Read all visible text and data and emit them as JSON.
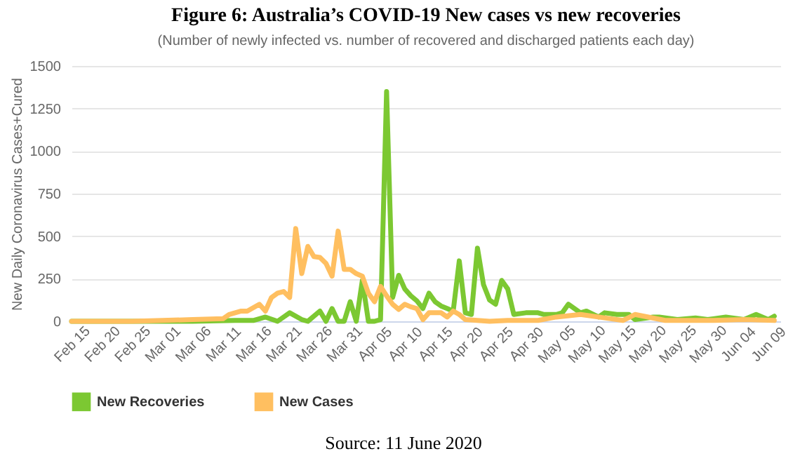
{
  "chart_data": {
    "type": "line",
    "title": "Figure 6: Australia’s COVID-19 New cases vs new recoveries",
    "subtitle": "(Number of newly infected vs. number of recovered and discharged patients each day)",
    "ylabel": "New Daily Coronavirus Cases+Cured",
    "annotations": [
      "Source: 11 June 2020"
    ],
    "series": [
      {
        "name": "New Recoveries",
        "color": "#7cc832",
        "x": [
          "2020-02-15",
          "2020-03-06",
          "2020-03-13",
          "2020-03-16",
          "2020-03-18",
          "2020-03-20",
          "2020-03-22",
          "2020-03-24",
          "2020-03-25",
          "2020-03-27",
          "2020-03-28",
          "2020-03-29",
          "2020-03-30",
          "2020-03-31",
          "2020-04-01",
          "2020-04-02",
          "2020-04-03",
          "2020-04-04",
          "2020-04-05",
          "2020-04-06",
          "2020-04-07",
          "2020-04-08",
          "2020-04-09",
          "2020-04-10",
          "2020-04-11",
          "2020-04-12",
          "2020-04-13",
          "2020-04-14",
          "2020-04-15",
          "2020-04-16",
          "2020-04-17",
          "2020-04-18",
          "2020-04-19",
          "2020-04-20",
          "2020-04-21",
          "2020-04-22",
          "2020-04-23",
          "2020-04-24",
          "2020-04-25",
          "2020-04-26",
          "2020-04-27",
          "2020-04-28",
          "2020-04-30",
          "2020-05-02",
          "2020-05-03",
          "2020-05-05",
          "2020-05-06",
          "2020-05-07",
          "2020-05-09",
          "2020-05-10",
          "2020-05-12",
          "2020-05-13",
          "2020-05-15",
          "2020-05-17",
          "2020-05-18",
          "2020-05-21",
          "2020-05-22",
          "2020-05-25",
          "2020-05-28",
          "2020-05-30",
          "2020-06-02",
          "2020-06-05",
          "2020-06-07",
          "2020-06-09",
          "2020-06-10"
        ],
        "values": [
          0,
          0,
          5,
          5,
          25,
          0,
          50,
          10,
          0,
          60,
          0,
          75,
          0,
          0,
          115,
          0,
          240,
          0,
          0,
          10,
          1350,
          140,
          270,
          190,
          150,
          120,
          75,
          165,
          115,
          90,
          75,
          60,
          355,
          50,
          40,
          430,
          215,
          125,
          100,
          240,
          190,
          40,
          50,
          50,
          40,
          40,
          50,
          100,
          50,
          60,
          25,
          50,
          40,
          40,
          10,
          25,
          25,
          10,
          20,
          10,
          25,
          10,
          40,
          10,
          30
        ]
      },
      {
        "name": "New Cases",
        "color": "#ffbf60",
        "x": [
          "2020-02-15",
          "2020-02-20",
          "2020-02-25",
          "2020-03-01",
          "2020-03-06",
          "2020-03-11",
          "2020-03-12",
          "2020-03-14",
          "2020-03-15",
          "2020-03-17",
          "2020-03-18",
          "2020-03-19",
          "2020-03-20",
          "2020-03-21",
          "2020-03-22",
          "2020-03-23",
          "2020-03-24",
          "2020-03-25",
          "2020-03-26",
          "2020-03-27",
          "2020-03-28",
          "2020-03-29",
          "2020-03-30",
          "2020-03-31",
          "2020-04-01",
          "2020-04-02",
          "2020-04-03",
          "2020-04-04",
          "2020-04-05",
          "2020-04-06",
          "2020-04-07",
          "2020-04-08",
          "2020-04-09",
          "2020-04-10",
          "2020-04-11",
          "2020-04-12",
          "2020-04-13",
          "2020-04-14",
          "2020-04-15",
          "2020-04-16",
          "2020-04-17",
          "2020-04-18",
          "2020-04-19",
          "2020-04-20",
          "2020-04-22",
          "2020-04-24",
          "2020-04-27",
          "2020-05-02",
          "2020-05-05",
          "2020-05-09",
          "2020-05-13",
          "2020-05-16",
          "2020-05-18",
          "2020-05-23",
          "2020-05-31",
          "2020-06-05",
          "2020-06-10"
        ],
        "values": [
          0,
          0,
          0,
          5,
          10,
          15,
          40,
          60,
          60,
          100,
          60,
          140,
          165,
          175,
          140,
          545,
          280,
          440,
          380,
          375,
          340,
          265,
          530,
          305,
          305,
          280,
          265,
          165,
          115,
          205,
          150,
          100,
          70,
          100,
          85,
          75,
          10,
          50,
          50,
          50,
          25,
          60,
          40,
          10,
          5,
          0,
          5,
          5,
          25,
          40,
          20,
          5,
          40,
          5,
          5,
          10,
          5
        ]
      }
    ],
    "xlim": [
      "2020-02-15",
      "2020-06-11"
    ],
    "xticks": [
      {
        "value": "2020-02-15",
        "label": "Feb 15"
      },
      {
        "value": "2020-02-20",
        "label": "Feb 20"
      },
      {
        "value": "2020-02-25",
        "label": "Feb 25"
      },
      {
        "value": "2020-03-01",
        "label": "Mar 01"
      },
      {
        "value": "2020-03-06",
        "label": "Mar 06"
      },
      {
        "value": "2020-03-11",
        "label": "Mar 11"
      },
      {
        "value": "2020-03-16",
        "label": "Mar 16"
      },
      {
        "value": "2020-03-21",
        "label": "Mar 21"
      },
      {
        "value": "2020-03-26",
        "label": "Mar 26"
      },
      {
        "value": "2020-03-31",
        "label": "Mar 31"
      },
      {
        "value": "2020-04-05",
        "label": "Apr 05"
      },
      {
        "value": "2020-04-10",
        "label": "Apr 10"
      },
      {
        "value": "2020-04-15",
        "label": "Apr 15"
      },
      {
        "value": "2020-04-20",
        "label": "Apr 20"
      },
      {
        "value": "2020-04-25",
        "label": "Apr 25"
      },
      {
        "value": "2020-04-30",
        "label": "Apr 30"
      },
      {
        "value": "2020-05-05",
        "label": "May 05"
      },
      {
        "value": "2020-05-10",
        "label": "May 10"
      },
      {
        "value": "2020-05-15",
        "label": "May 15"
      },
      {
        "value": "2020-05-20",
        "label": "May 20"
      },
      {
        "value": "2020-05-25",
        "label": "May 25"
      },
      {
        "value": "2020-05-30",
        "label": "May 30"
      },
      {
        "value": "2020-06-04",
        "label": "Jun 04"
      },
      {
        "value": "2020-06-09",
        "label": "Jun 09"
      }
    ],
    "ylim": [
      0,
      1500
    ],
    "yticks": [
      0,
      250,
      500,
      750,
      1000,
      1250,
      1500
    ],
    "grid": "y",
    "legend": "bottom",
    "marker": "none",
    "line_style": "solid"
  }
}
